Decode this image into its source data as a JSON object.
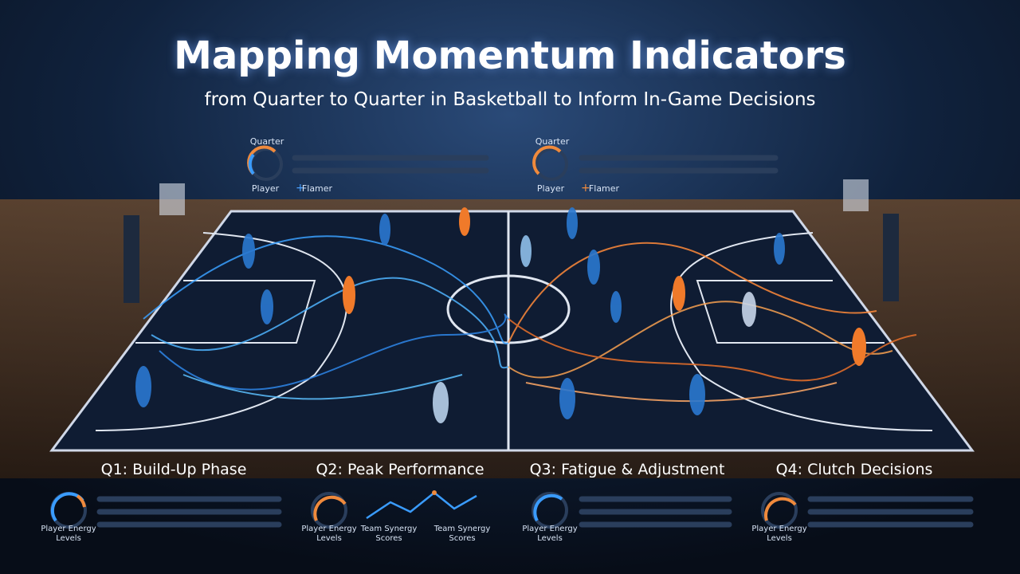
{
  "header": {
    "title": "Mapping Momentum Indicators",
    "subtitle": "from Quarter to Quarter in Basketball to Inform In-Game Decisions"
  },
  "top_panels": [
    {
      "label": "Quarter",
      "legend": [
        "Player",
        "Flamer"
      ]
    },
    {
      "label": "Quarter",
      "legend": [
        "Player",
        "Flamer"
      ]
    }
  ],
  "quarters": [
    {
      "title": "Q1: Build-Up Phase",
      "gauge_label": "Player Energy Levels"
    },
    {
      "title": "Q2: Peak Performance",
      "gauge_label": "Player Energy Levels",
      "chart_labels": [
        "Team Synergy Scores",
        "Team Synergy Scores"
      ]
    },
    {
      "title": "Q3: Fatigue & Adjustment",
      "gauge_label": "Player Energy Levels"
    },
    {
      "title": "Q4: Clutch Decisions",
      "gauge_label": "Player Energy Levels"
    }
  ]
}
